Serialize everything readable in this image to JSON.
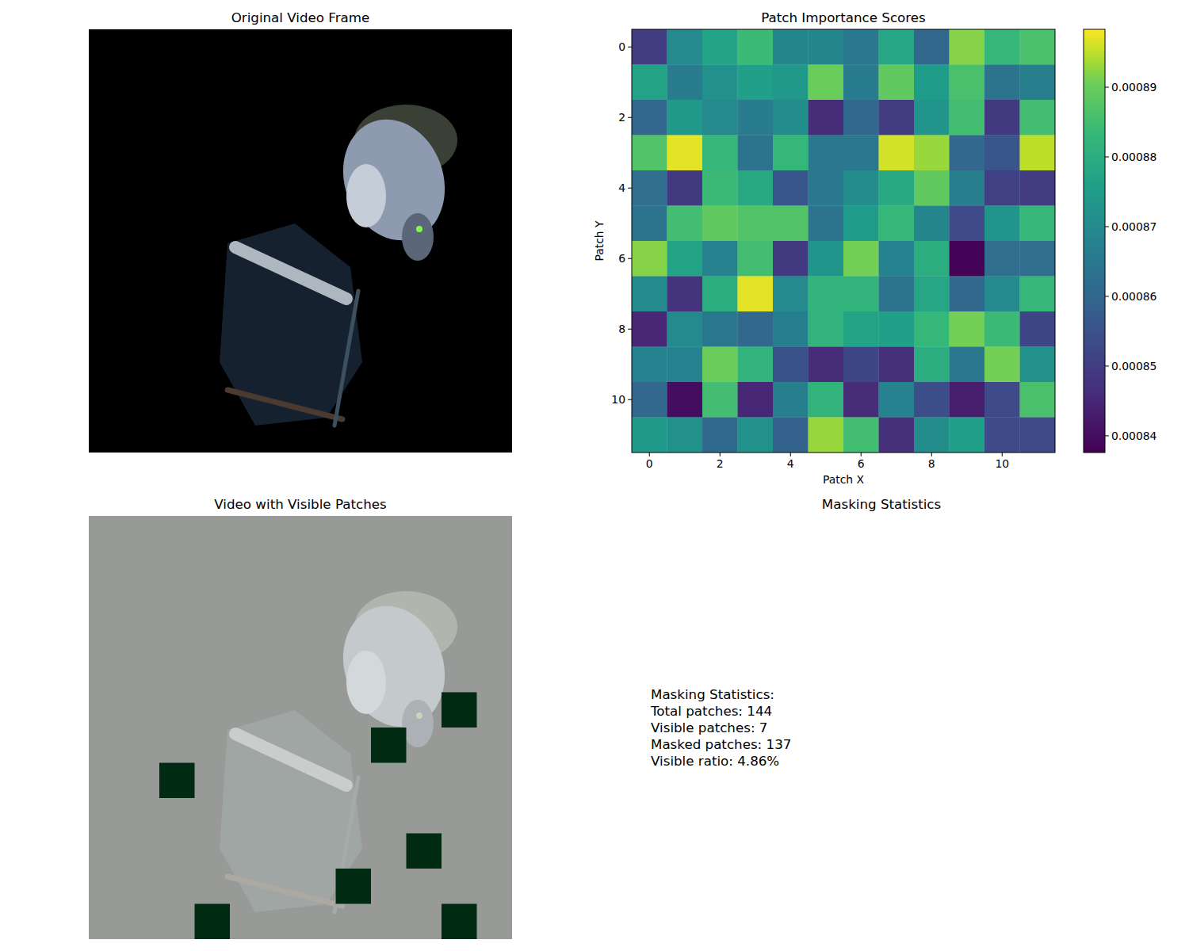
{
  "chart_data": [
    {
      "type": "image",
      "title": "Original Video Frame"
    },
    {
      "type": "heatmap",
      "title": "Patch Importance Scores",
      "xlabel": "Patch X",
      "ylabel": "Patch Y",
      "xlim": [
        -0.5,
        11.5
      ],
      "ylim": [
        11.5,
        -0.5
      ],
      "xticks": [
        0,
        2,
        4,
        6,
        8,
        10
      ],
      "yticks": [
        0,
        2,
        4,
        6,
        8,
        10
      ],
      "cells": [
        [
          0.00085,
          0.00087,
          0.000877,
          0.000884,
          0.000869,
          0.000869,
          0.000865,
          0.000878,
          0.00086,
          0.000892,
          0.000883,
          0.000886
        ],
        [
          0.000877,
          0.000866,
          0.000872,
          0.000876,
          0.000874,
          0.00089,
          0.000866,
          0.000889,
          0.000875,
          0.000886,
          0.000864,
          0.000867
        ],
        [
          0.00086,
          0.000874,
          0.00087,
          0.000866,
          0.000871,
          0.000846,
          0.00086,
          0.00085,
          0.000873,
          0.000885,
          0.000849,
          0.000885
        ],
        [
          0.000887,
          0.000897,
          0.000883,
          0.000864,
          0.000883,
          0.000865,
          0.000865,
          0.000896,
          0.000893,
          0.00086,
          0.000856,
          0.000895
        ],
        [
          0.000862,
          0.000849,
          0.000884,
          0.000879,
          0.000856,
          0.000865,
          0.000871,
          0.000879,
          0.000889,
          0.000867,
          0.000851,
          0.00085
        ],
        [
          0.000864,
          0.000885,
          0.000889,
          0.000887,
          0.000887,
          0.000864,
          0.000875,
          0.000883,
          0.000869,
          0.000853,
          0.000873,
          0.000883
        ],
        [
          0.000892,
          0.000877,
          0.000868,
          0.000885,
          0.000849,
          0.000873,
          0.000891,
          0.000868,
          0.00088,
          0.000838,
          0.000862,
          0.000862
        ],
        [
          0.00087,
          0.000848,
          0.00088,
          0.000897,
          0.00087,
          0.000882,
          0.000882,
          0.000864,
          0.000878,
          0.00086,
          0.00087,
          0.000883
        ],
        [
          0.000845,
          0.00087,
          0.000865,
          0.00086,
          0.000867,
          0.000882,
          0.000877,
          0.000876,
          0.000883,
          0.000891,
          0.000884,
          0.000852
        ],
        [
          0.000868,
          0.000868,
          0.00089,
          0.000882,
          0.000855,
          0.000846,
          0.000852,
          0.000847,
          0.00088,
          0.000865,
          0.000891,
          0.000872
        ],
        [
          0.00086,
          0.00084,
          0.000885,
          0.000845,
          0.000867,
          0.000882,
          0.000846,
          0.000868,
          0.000854,
          0.000843,
          0.000853,
          0.000886
        ],
        [
          0.000874,
          0.000872,
          0.000861,
          0.000872,
          0.000859,
          0.000893,
          0.000885,
          0.000847,
          0.000871,
          0.000876,
          0.000853,
          0.000853
        ]
      ],
      "colorbar": {
        "range": [
          0.0008376,
          0.0008983
        ],
        "ticks": [
          0.00084,
          0.00085,
          0.00086,
          0.00087,
          0.00088,
          0.00089
        ]
      }
    },
    {
      "type": "image",
      "title": "Video with Visible Patches",
      "xlim": [
        -0.5,
        11.5
      ],
      "ylim": [
        11.5,
        -0.5
      ],
      "visible_patches": [
        [
          5,
          10
        ],
        [
          6,
          8
        ],
        [
          7,
          2
        ],
        [
          9,
          9
        ],
        [
          10,
          7
        ],
        [
          11,
          3
        ],
        [
          11,
          10
        ]
      ]
    },
    {
      "type": "text",
      "title": "Masking Statistics",
      "lines": [
        "Masking Statistics:",
        "Total patches: 144",
        "Visible patches: 7",
        "Masked patches: 137",
        "Visible ratio: 4.86%"
      ]
    }
  ]
}
